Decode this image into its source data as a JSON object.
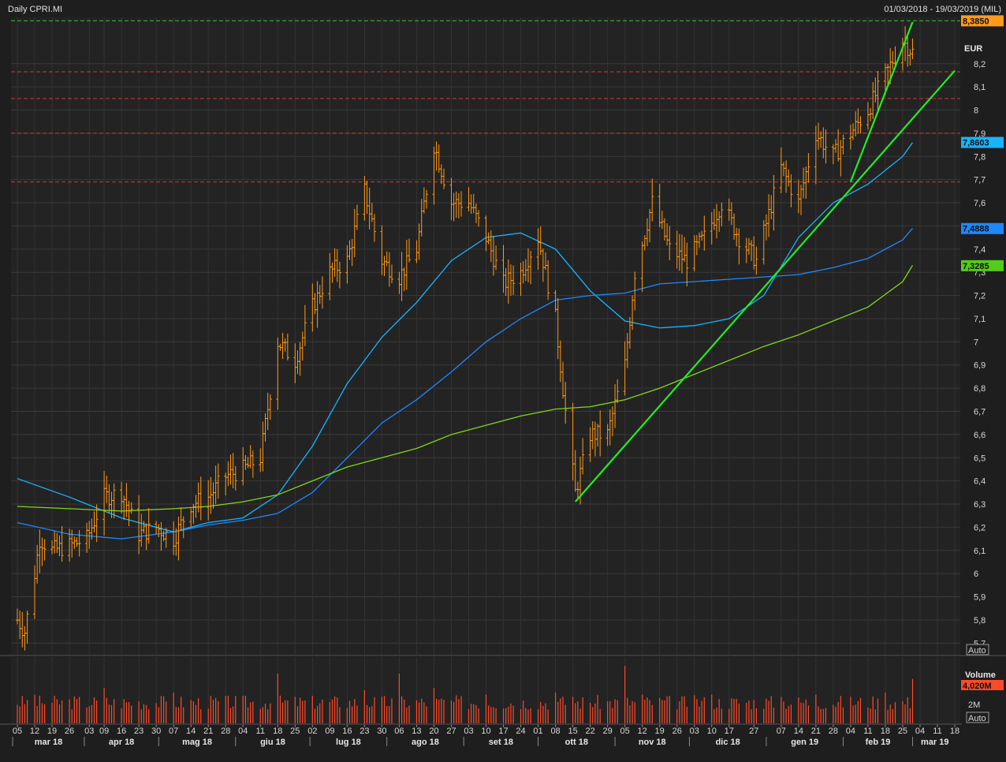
{
  "header": {
    "title": "Daily CPRI.MI",
    "range": "01/03/2018 - 19/03/2019 (MIL)"
  },
  "price_axis": {
    "unit": "EUR",
    "auto_label": "Auto"
  },
  "volume_panel": {
    "title": "Volume",
    "last_value": "4,020M",
    "tick": "2M",
    "auto_label": "Auto"
  },
  "price_tags": [
    {
      "label": "8,3850",
      "value": 8.385,
      "color": "#ff9a1a"
    },
    {
      "label": "7,8603",
      "value": 7.8603,
      "color": "#18b4ff"
    },
    {
      "label": "7,4888",
      "value": 7.4888,
      "color": "#1e88ff"
    },
    {
      "label": "7,3285",
      "value": 7.3285,
      "color": "#55cc1a"
    }
  ],
  "colors": {
    "bars": "#ff9a1a",
    "volume": "#ff4a2a",
    "ma_short": "#18b4ff",
    "ma_mid": "#1e88ff",
    "ma_long": "#7fd61a",
    "trend": "#22ee22",
    "support": "#d43434",
    "top": "#2ec82e"
  },
  "chart_data": {
    "type": "ohlc",
    "x_start": "2018-03-05",
    "x_end": "2019-03-18",
    "ylim": [
      5.65,
      8.4
    ],
    "y_ticks": [
      {
        "v": 8.2,
        "label": "8,2"
      },
      {
        "v": 8.1,
        "label": "8,1"
      },
      {
        "v": 8.0,
        "label": "8"
      },
      {
        "v": 7.9,
        "label": "7,9"
      },
      {
        "v": 7.8,
        "label": "7,8"
      },
      {
        "v": 7.7,
        "label": "7,7"
      },
      {
        "v": 7.6,
        "label": "7,6"
      },
      {
        "v": 7.5,
        "label": "7,5"
      },
      {
        "v": 7.4,
        "label": "7,4"
      },
      {
        "v": 7.3,
        "label": "7,3"
      },
      {
        "v": 7.2,
        "label": "7,2"
      },
      {
        "v": 7.1,
        "label": "7,1"
      },
      {
        "v": 7.0,
        "label": "7"
      },
      {
        "v": 6.9,
        "label": "6,9"
      },
      {
        "v": 6.8,
        "label": "6,8"
      },
      {
        "v": 6.7,
        "label": "6,7"
      },
      {
        "v": 6.6,
        "label": "6,6"
      },
      {
        "v": 6.5,
        "label": "6,5"
      },
      {
        "v": 6.4,
        "label": "6,4"
      },
      {
        "v": 6.3,
        "label": "6,3"
      },
      {
        "v": 6.2,
        "label": "6,2"
      },
      {
        "v": 6.1,
        "label": "6,1"
      },
      {
        "v": 6.0,
        "label": "6"
      },
      {
        "v": 5.9,
        "label": "5,9"
      },
      {
        "v": 5.8,
        "label": "5,8"
      },
      {
        "v": 5.7,
        "label": "5,7"
      }
    ],
    "x_day_ticks": [
      {
        "d": "2018-03-05",
        "label": "05"
      },
      {
        "d": "2018-03-12",
        "label": "12"
      },
      {
        "d": "2018-03-19",
        "label": "19"
      },
      {
        "d": "2018-03-26",
        "label": "26"
      },
      {
        "d": "2018-04-03",
        "label": "03"
      },
      {
        "d": "2018-04-09",
        "label": "09"
      },
      {
        "d": "2018-04-16",
        "label": "16"
      },
      {
        "d": "2018-04-23",
        "label": "23"
      },
      {
        "d": "2018-04-30",
        "label": "30"
      },
      {
        "d": "2018-05-07",
        "label": "07"
      },
      {
        "d": "2018-05-14",
        "label": "14"
      },
      {
        "d": "2018-05-21",
        "label": "21"
      },
      {
        "d": "2018-05-28",
        "label": "28"
      },
      {
        "d": "2018-06-04",
        "label": "04"
      },
      {
        "d": "2018-06-11",
        "label": "11"
      },
      {
        "d": "2018-06-18",
        "label": "18"
      },
      {
        "d": "2018-06-25",
        "label": "25"
      },
      {
        "d": "2018-07-02",
        "label": "02"
      },
      {
        "d": "2018-07-09",
        "label": "09"
      },
      {
        "d": "2018-07-16",
        "label": "16"
      },
      {
        "d": "2018-07-23",
        "label": "23"
      },
      {
        "d": "2018-07-30",
        "label": "30"
      },
      {
        "d": "2018-08-06",
        "label": "06"
      },
      {
        "d": "2018-08-13",
        "label": "13"
      },
      {
        "d": "2018-08-20",
        "label": "20"
      },
      {
        "d": "2018-08-27",
        "label": "27"
      },
      {
        "d": "2018-09-03",
        "label": "03"
      },
      {
        "d": "2018-09-10",
        "label": "10"
      },
      {
        "d": "2018-09-17",
        "label": "17"
      },
      {
        "d": "2018-09-24",
        "label": "24"
      },
      {
        "d": "2018-10-01",
        "label": "01"
      },
      {
        "d": "2018-10-08",
        "label": "08"
      },
      {
        "d": "2018-10-15",
        "label": "15"
      },
      {
        "d": "2018-10-22",
        "label": "22"
      },
      {
        "d": "2018-10-29",
        "label": "29"
      },
      {
        "d": "2018-11-05",
        "label": "05"
      },
      {
        "d": "2018-11-12",
        "label": "12"
      },
      {
        "d": "2018-11-19",
        "label": "19"
      },
      {
        "d": "2018-11-26",
        "label": "26"
      },
      {
        "d": "2018-12-03",
        "label": "03"
      },
      {
        "d": "2018-12-10",
        "label": "10"
      },
      {
        "d": "2018-12-17",
        "label": "17"
      },
      {
        "d": "2018-12-27",
        "label": "27"
      },
      {
        "d": "2019-01-07",
        "label": "07"
      },
      {
        "d": "2019-01-14",
        "label": "14"
      },
      {
        "d": "2019-01-21",
        "label": "21"
      },
      {
        "d": "2019-01-28",
        "label": "28"
      },
      {
        "d": "2019-02-04",
        "label": "04"
      },
      {
        "d": "2019-02-11",
        "label": "11"
      },
      {
        "d": "2019-02-18",
        "label": "18"
      },
      {
        "d": "2019-02-25",
        "label": "25"
      },
      {
        "d": "2019-03-04",
        "label": "04"
      },
      {
        "d": "2019-03-11",
        "label": "11"
      },
      {
        "d": "2019-03-18",
        "label": "18"
      }
    ],
    "x_month_ticks": [
      {
        "d": "2018-03-01",
        "label": "mar 18"
      },
      {
        "d": "2018-04-01",
        "label": "apr 18"
      },
      {
        "d": "2018-05-01",
        "label": "mag 18"
      },
      {
        "d": "2018-06-01",
        "label": "giu 18"
      },
      {
        "d": "2018-07-01",
        "label": "lug 18"
      },
      {
        "d": "2018-08-01",
        "label": "ago 18"
      },
      {
        "d": "2018-09-01",
        "label": "set 18"
      },
      {
        "d": "2018-10-01",
        "label": "ott 18"
      },
      {
        "d": "2018-11-01",
        "label": "nov 18"
      },
      {
        "d": "2018-12-01",
        "label": "dic 18"
      },
      {
        "d": "2019-01-01",
        "label": "gen 19"
      },
      {
        "d": "2019-02-01",
        "label": "feb 19"
      },
      {
        "d": "2019-03-01",
        "label": "mar 19"
      }
    ],
    "horizontal_levels": [
      {
        "v": 8.385,
        "color": "#2ec82e"
      },
      {
        "v": 8.165,
        "color": "#d43434"
      },
      {
        "v": 8.05,
        "color": "#d43434"
      },
      {
        "v": 7.9,
        "color": "#d43434"
      },
      {
        "v": 7.69,
        "color": "#d43434"
      }
    ],
    "trend_lines": [
      {
        "from": {
          "d": "2018-10-16",
          "v": 6.31
        },
        "to": {
          "d": "2019-03-18",
          "v": 8.17
        }
      },
      {
        "from": {
          "d": "2019-02-04",
          "v": 7.69
        },
        "to": {
          "d": "2019-03-01",
          "v": 8.38
        }
      }
    ],
    "price_path": [
      [
        "2018-03-05",
        5.8
      ],
      [
        "2018-03-08",
        5.75
      ],
      [
        "2018-03-12",
        6.0
      ],
      [
        "2018-03-14",
        6.15
      ],
      [
        "2018-03-19",
        6.1
      ],
      [
        "2018-03-26",
        6.12
      ],
      [
        "2018-04-02",
        6.15
      ],
      [
        "2018-04-09",
        6.33
      ],
      [
        "2018-04-16",
        6.35
      ],
      [
        "2018-04-23",
        6.17
      ],
      [
        "2018-04-30",
        6.2
      ],
      [
        "2018-05-07",
        6.15
      ],
      [
        "2018-05-14",
        6.3
      ],
      [
        "2018-05-21",
        6.33
      ],
      [
        "2018-05-28",
        6.42
      ],
      [
        "2018-06-04",
        6.45
      ],
      [
        "2018-06-11",
        6.5
      ],
      [
        "2018-06-18",
        7.0
      ],
      [
        "2018-06-25",
        6.92
      ],
      [
        "2018-07-02",
        7.15
      ],
      [
        "2018-07-09",
        7.3
      ],
      [
        "2018-07-16",
        7.35
      ],
      [
        "2018-07-23",
        7.65
      ],
      [
        "2018-07-30",
        7.35
      ],
      [
        "2018-08-06",
        7.28
      ],
      [
        "2018-08-13",
        7.4
      ],
      [
        "2018-08-20",
        7.85
      ],
      [
        "2018-08-27",
        7.6
      ],
      [
        "2018-09-03",
        7.6
      ],
      [
        "2018-09-10",
        7.45
      ],
      [
        "2018-09-17",
        7.25
      ],
      [
        "2018-09-24",
        7.3
      ],
      [
        "2018-10-01",
        7.45
      ],
      [
        "2018-10-08",
        7.1
      ],
      [
        "2018-10-12",
        6.7
      ],
      [
        "2018-10-16",
        6.35
      ],
      [
        "2018-10-22",
        6.6
      ],
      [
        "2018-10-29",
        6.6
      ],
      [
        "2018-11-05",
        6.9
      ],
      [
        "2018-11-09",
        7.3
      ],
      [
        "2018-11-16",
        7.6
      ],
      [
        "2018-11-23",
        7.4
      ],
      [
        "2018-11-30",
        7.35
      ],
      [
        "2018-12-07",
        7.45
      ],
      [
        "2018-12-14",
        7.6
      ],
      [
        "2018-12-21",
        7.45
      ],
      [
        "2018-12-28",
        7.35
      ],
      [
        "2019-01-07",
        7.75
      ],
      [
        "2019-01-14",
        7.6
      ],
      [
        "2019-01-21",
        7.9
      ],
      [
        "2019-01-28",
        7.8
      ],
      [
        "2019-02-04",
        7.9
      ],
      [
        "2019-02-11",
        8.0
      ],
      [
        "2019-02-18",
        8.15
      ],
      [
        "2019-02-25",
        8.3
      ],
      [
        "2019-03-01",
        8.25
      ]
    ],
    "series": [
      {
        "points": [
          [
            "2018-03-05",
            6.41
          ],
          [
            "2018-03-26",
            6.33
          ],
          [
            "2018-04-16",
            6.24
          ],
          [
            "2018-05-07",
            6.18
          ],
          [
            "2018-05-21",
            6.22
          ],
          [
            "2018-06-04",
            6.24
          ],
          [
            "2018-06-18",
            6.34
          ],
          [
            "2018-07-02",
            6.55
          ],
          [
            "2018-07-16",
            6.82
          ],
          [
            "2018-07-30",
            7.02
          ],
          [
            "2018-08-13",
            7.17
          ],
          [
            "2018-08-27",
            7.35
          ],
          [
            "2018-09-10",
            7.45
          ],
          [
            "2018-09-24",
            7.47
          ],
          [
            "2018-10-08",
            7.4
          ],
          [
            "2018-10-22",
            7.22
          ],
          [
            "2018-11-05",
            7.09
          ],
          [
            "2018-11-19",
            7.06
          ],
          [
            "2018-12-03",
            7.07
          ],
          [
            "2018-12-17",
            7.1
          ],
          [
            "2018-12-31",
            7.2
          ],
          [
            "2019-01-14",
            7.45
          ],
          [
            "2019-01-28",
            7.6
          ],
          [
            "2019-02-11",
            7.68
          ],
          [
            "2019-02-25",
            7.8
          ],
          [
            "2019-03-01",
            7.86
          ]
        ]
      },
      {
        "points": [
          [
            "2018-03-05",
            6.22
          ],
          [
            "2018-03-26",
            6.17
          ],
          [
            "2018-04-16",
            6.15
          ],
          [
            "2018-05-07",
            6.18
          ],
          [
            "2018-05-21",
            6.21
          ],
          [
            "2018-06-04",
            6.23
          ],
          [
            "2018-06-18",
            6.26
          ],
          [
            "2018-07-02",
            6.35
          ],
          [
            "2018-07-16",
            6.5
          ],
          [
            "2018-07-30",
            6.65
          ],
          [
            "2018-08-13",
            6.75
          ],
          [
            "2018-08-27",
            6.87
          ],
          [
            "2018-09-10",
            7.0
          ],
          [
            "2018-09-24",
            7.1
          ],
          [
            "2018-10-08",
            7.18
          ],
          [
            "2018-10-22",
            7.2
          ],
          [
            "2018-11-05",
            7.21
          ],
          [
            "2018-11-19",
            7.25
          ],
          [
            "2018-12-03",
            7.26
          ],
          [
            "2018-12-17",
            7.27
          ],
          [
            "2018-12-31",
            7.28
          ],
          [
            "2019-01-14",
            7.29
          ],
          [
            "2019-01-28",
            7.32
          ],
          [
            "2019-02-11",
            7.36
          ],
          [
            "2019-02-25",
            7.44
          ],
          [
            "2019-03-01",
            7.49
          ]
        ]
      },
      {
        "points": [
          [
            "2018-03-05",
            6.29
          ],
          [
            "2018-03-26",
            6.28
          ],
          [
            "2018-04-16",
            6.27
          ],
          [
            "2018-05-07",
            6.28
          ],
          [
            "2018-05-21",
            6.29
          ],
          [
            "2018-06-04",
            6.31
          ],
          [
            "2018-06-18",
            6.34
          ],
          [
            "2018-07-02",
            6.4
          ],
          [
            "2018-07-16",
            6.46
          ],
          [
            "2018-07-30",
            6.5
          ],
          [
            "2018-08-13",
            6.54
          ],
          [
            "2018-08-27",
            6.6
          ],
          [
            "2018-09-10",
            6.64
          ],
          [
            "2018-09-24",
            6.68
          ],
          [
            "2018-10-08",
            6.71
          ],
          [
            "2018-10-22",
            6.72
          ],
          [
            "2018-11-05",
            6.75
          ],
          [
            "2018-11-19",
            6.8
          ],
          [
            "2018-12-03",
            6.86
          ],
          [
            "2018-12-17",
            6.92
          ],
          [
            "2018-12-31",
            6.98
          ],
          [
            "2019-01-14",
            7.03
          ],
          [
            "2019-01-28",
            7.09
          ],
          [
            "2019-02-11",
            7.15
          ],
          [
            "2019-02-25",
            7.26
          ],
          [
            "2019-03-01",
            7.33
          ]
        ]
      }
    ],
    "volume": {
      "ylim": [
        0,
        6
      ],
      "typical": 1.9,
      "spikes": [
        [
          "2018-03-12",
          2.6
        ],
        [
          "2018-04-09",
          3.2
        ],
        [
          "2018-05-07",
          2.8
        ],
        [
          "2018-06-18",
          4.5
        ],
        [
          "2018-07-23",
          3.0
        ],
        [
          "2018-08-06",
          4.5
        ],
        [
          "2018-08-20",
          3.2
        ],
        [
          "2018-09-10",
          2.6
        ],
        [
          "2018-10-08",
          2.8
        ],
        [
          "2018-10-15",
          2.4
        ],
        [
          "2018-11-05",
          5.2
        ],
        [
          "2018-11-12",
          2.6
        ],
        [
          "2018-12-10",
          2.6
        ],
        [
          "2019-01-07",
          2.4
        ],
        [
          "2019-01-21",
          2.6
        ],
        [
          "2019-02-18",
          2.8
        ],
        [
          "2019-03-01",
          4.02
        ]
      ]
    }
  }
}
